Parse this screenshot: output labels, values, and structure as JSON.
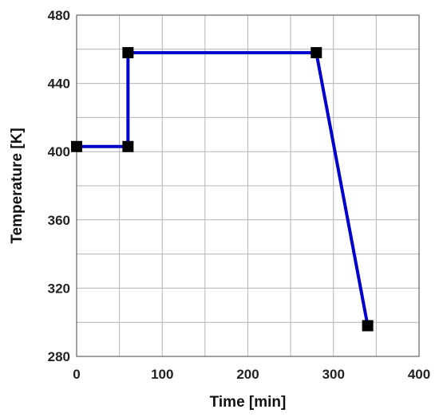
{
  "chart_data": {
    "type": "line",
    "xlabel": "Time [min]",
    "ylabel": "Temperature [K]",
    "xlim": [
      0,
      400
    ],
    "ylim": [
      280,
      480
    ],
    "x_ticks": [
      0,
      100,
      200,
      300,
      400
    ],
    "y_ticks": [
      280,
      320,
      360,
      400,
      440,
      480
    ],
    "x_minor_step": 50,
    "y_minor_step": 20,
    "grid": true,
    "series": [
      {
        "x": [
          0,
          60,
          60,
          280,
          340
        ],
        "y": [
          403,
          403,
          458,
          458,
          298
        ],
        "line_color": "#0000cc",
        "marker": "square",
        "marker_color": "#000000"
      }
    ]
  }
}
